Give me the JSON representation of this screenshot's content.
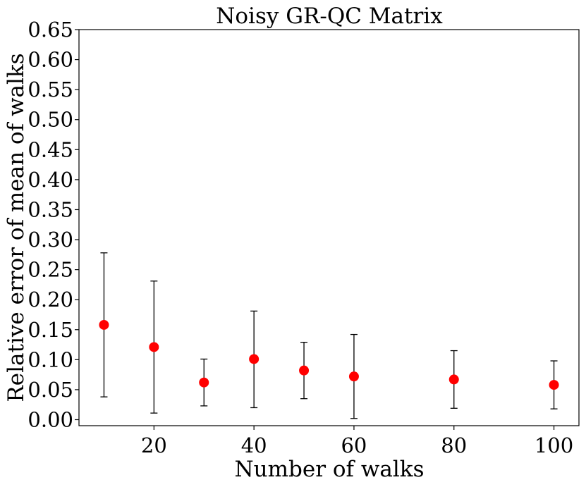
{
  "chart_data": {
    "type": "scatter",
    "title": "Noisy GR-QC Matrix",
    "xlabel": "Number of walks",
    "ylabel": "Relative error of mean of walks",
    "xlim": [
      5,
      105
    ],
    "ylim": [
      -0.01,
      0.65
    ],
    "xticks": [
      20,
      40,
      60,
      80,
      100
    ],
    "yticks": [
      0.0,
      0.05,
      0.1,
      0.15,
      0.2,
      0.25,
      0.3,
      0.35,
      0.4,
      0.45,
      0.5,
      0.55,
      0.6,
      0.65
    ],
    "ytick_labels": [
      "0.00",
      "0.05",
      "0.10",
      "0.15",
      "0.20",
      "0.25",
      "0.30",
      "0.35",
      "0.40",
      "0.45",
      "0.50",
      "0.55",
      "0.60",
      "0.65"
    ],
    "grid": false,
    "series": [
      {
        "marker_color": "#ff0000",
        "errorbar_color": "#000000",
        "points": [
          {
            "x": 10,
            "y": 0.158,
            "ylow": 0.038,
            "yhigh": 0.278
          },
          {
            "x": 20,
            "y": 0.121,
            "ylow": 0.011,
            "yhigh": 0.231
          },
          {
            "x": 30,
            "y": 0.062,
            "ylow": 0.023,
            "yhigh": 0.101
          },
          {
            "x": 40,
            "y": 0.101,
            "ylow": 0.02,
            "yhigh": 0.181
          },
          {
            "x": 50,
            "y": 0.082,
            "ylow": 0.035,
            "yhigh": 0.129
          },
          {
            "x": 60,
            "y": 0.072,
            "ylow": 0.002,
            "yhigh": 0.142
          },
          {
            "x": 80,
            "y": 0.067,
            "ylow": 0.019,
            "yhigh": 0.115
          },
          {
            "x": 100,
            "y": 0.058,
            "ylow": 0.018,
            "yhigh": 0.098
          }
        ]
      }
    ]
  }
}
